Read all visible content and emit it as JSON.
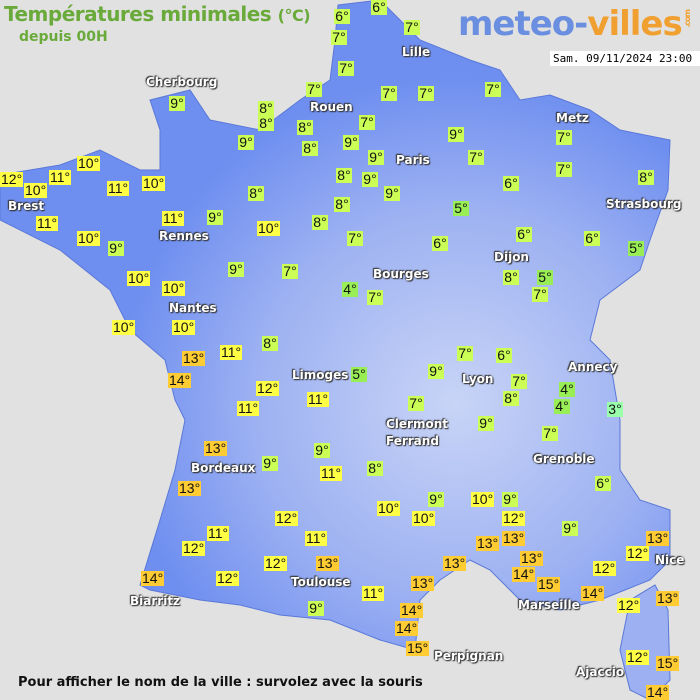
{
  "header": {
    "title": "Températures minimales",
    "unit": "(°C)",
    "subtitle": "depuis 00H"
  },
  "logo": {
    "part1": "meteo-",
    "part2": "villes",
    "suffix": ".com"
  },
  "datetime": "Sam. 09/11/2024 23:00",
  "footer": "Pour afficher le nom de la ville : survolez avec la souris",
  "colors": {
    "cold": "#99ffaa",
    "cool": "#99ee55",
    "mild": "#ccff55",
    "warm": "#ffff44",
    "hot": "#ffcc33",
    "land": "#6f8ff0",
    "sea": "#e1e1e1"
  },
  "cities": [
    "Lille",
    "Cherbourg",
    "Rouen",
    "Metz",
    "Paris",
    "Brest",
    "Strasbourg",
    "Rennes",
    "Dijon",
    "Bourges",
    "Nantes",
    "Limoges",
    "Annecy",
    "Lyon",
    "Clermont",
    "Ferrand",
    "Grenoble",
    "Bordeaux",
    "Toulouse",
    "Nice",
    "Biarritz",
    "Marseille",
    "Perpignan",
    "Ajaccio"
  ],
  "temperatures": [
    6,
    6,
    7,
    7,
    7,
    7,
    7,
    7,
    7,
    9,
    8,
    8,
    8,
    7,
    9,
    8,
    9,
    9,
    9,
    7,
    10,
    12,
    11,
    10,
    11,
    10,
    8,
    9,
    6,
    7,
    7,
    8,
    8,
    9,
    8,
    5,
    11,
    11,
    9,
    10,
    8,
    10,
    9,
    7,
    6,
    6,
    6,
    5,
    9,
    7,
    8,
    5,
    7,
    4,
    7,
    10,
    10,
    10,
    10,
    8,
    13,
    11,
    14,
    12,
    11,
    11,
    5,
    7,
    6,
    9,
    7,
    8,
    7,
    4,
    4,
    3,
    9,
    7,
    13,
    9,
    9,
    8,
    11,
    13,
    6,
    9,
    10,
    9,
    10,
    10,
    12,
    12,
    9,
    13,
    11,
    11,
    13,
    13,
    12,
    12,
    12,
    13,
    13,
    13,
    14,
    15,
    12,
    12,
    14,
    13,
    11,
    14,
    13,
    12,
    9,
    14,
    14,
    15,
    12,
    15,
    14
  ],
  "degree_symbol": "°"
}
